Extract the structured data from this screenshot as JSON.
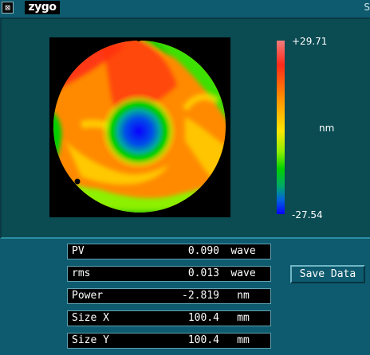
{
  "titlebar": {
    "menu_icon": "⊠",
    "logo": "zygo",
    "right_text": "S"
  },
  "colorbar": {
    "max": "+29.71",
    "min": "-27.54",
    "unit": "nm"
  },
  "results": [
    {
      "label": "PV",
      "value": "0.090",
      "unit": "wave"
    },
    {
      "label": "rms",
      "value": "0.013",
      "unit": "wave"
    },
    {
      "label": "Power",
      "value": "-2.819",
      "unit": "nm"
    },
    {
      "label": "Size X",
      "value": "100.4",
      "unit": "mm"
    },
    {
      "label": "Size Y",
      "value": "100.4",
      "unit": "mm"
    }
  ],
  "save_button": "Save Data"
}
